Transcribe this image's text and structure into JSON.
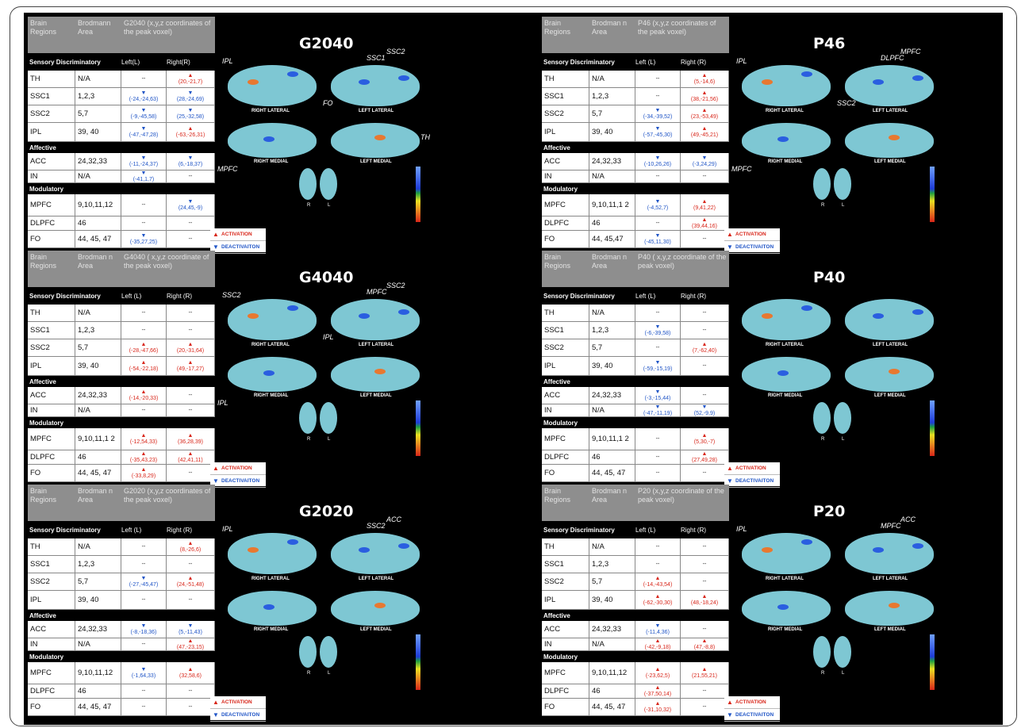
{
  "panels": [
    {
      "id": "G2040",
      "col_header": "G2040 (x,y,z coordinates of the peak voxel)",
      "left": "Left(L)",
      "right": "Right(R)",
      "rows": [
        {
          "region": "TH",
          "area": "N/A",
          "L": "--",
          "R": "(20,-21,7)",
          "Ld": "",
          "Rd": "up"
        },
        {
          "region": "SSC1",
          "area": "1,2,3",
          "L": "(-24,-24,63)",
          "R": "(28,-24,69)",
          "Ld": "dn",
          "Rd": "dn"
        },
        {
          "region": "SSC2",
          "area": "5,7",
          "L": "(-9,-45,58)",
          "R": "(25,-32,58)",
          "Ld": "dn",
          "Rd": "dn"
        },
        {
          "region": "IPL",
          "area": "39, 40",
          "L": "(-47,-47,28)",
          "R": "(-63,-26,31)",
          "Ld": "dn",
          "Rd": "up"
        },
        {
          "region": "ACC",
          "area": "24,32,33",
          "L": "(-11,-24,37)",
          "R": "(6,-18,37)",
          "Ld": "dn",
          "Rd": "dn"
        },
        {
          "region": "IN",
          "area": "N/A",
          "L": "(-41,1,7)",
          "R": "--",
          "Ld": "dn",
          "Rd": ""
        },
        {
          "region": "MPFC",
          "area": "9,10,11,12",
          "L": "--",
          "R": "(24,45,-9)",
          "Ld": "",
          "Rd": "dn"
        },
        {
          "region": "DLPFC",
          "area": "46",
          "L": "--",
          "R": "--",
          "Ld": "",
          "Rd": ""
        },
        {
          "region": "FO",
          "area": "44, 45, 47",
          "L": "(-35,27,25)",
          "R": "--",
          "Ld": "dn",
          "Rd": ""
        }
      ]
    },
    {
      "id": "G4040",
      "col_header": "G4040 ( x,y,z coordinate of the peak voxel)",
      "left": "Left (L)",
      "right": "Right (R)",
      "rows": [
        {
          "region": "TH",
          "area": "N/A",
          "L": "--",
          "R": "--",
          "Ld": "",
          "Rd": ""
        },
        {
          "region": "SSC1",
          "area": "1,2,3",
          "L": "--",
          "R": "--",
          "Ld": "",
          "Rd": ""
        },
        {
          "region": "SSC2",
          "area": "5,7",
          "L": "(-28,-47,66)",
          "R": "(20,-31,64)",
          "Ld": "up",
          "Rd": "up"
        },
        {
          "region": "IPL",
          "area": "39, 40",
          "L": "(-54,-22,18)",
          "R": "(49,-17,27)",
          "Ld": "up",
          "Rd": "up"
        },
        {
          "region": "ACC",
          "area": "24,32,33",
          "L": "(-14,-20,33)",
          "R": "--",
          "Ld": "up",
          "Rd": ""
        },
        {
          "region": "IN",
          "area": "N/A",
          "L": "--",
          "R": "--",
          "Ld": "",
          "Rd": ""
        },
        {
          "region": "MPFC",
          "area": "9,10,11,1 2",
          "L": "(-12,54,33)",
          "R": "(36,28,39)",
          "Ld": "up",
          "Rd": "up"
        },
        {
          "region": "DLPFC",
          "area": "46",
          "L": "(-35,43,23)",
          "R": "(42,41,11)",
          "Ld": "up",
          "Rd": "up"
        },
        {
          "region": "FO",
          "area": "44, 45, 47",
          "L": "(-33,8,29)",
          "R": "--",
          "Ld": "up",
          "Rd": ""
        }
      ]
    },
    {
      "id": "G2020",
      "col_header": "G2020 (x,y,z coordinates of the peak voxel)",
      "left": "Left (L)",
      "right": "Right (R)",
      "rows": [
        {
          "region": "TH",
          "area": "N/A",
          "L": "--",
          "R": "(8,-26,6)",
          "Ld": "",
          "Rd": "up"
        },
        {
          "region": "SSC1",
          "area": "1,2,3",
          "L": "--",
          "R": "--",
          "Ld": "",
          "Rd": ""
        },
        {
          "region": "SSC2",
          "area": "5,7",
          "L": "(-27,-45,47)",
          "R": "(24,-51,48)",
          "Ld": "dn",
          "Rd": "up"
        },
        {
          "region": "IPL",
          "area": "39, 40",
          "L": "--",
          "R": "--",
          "Ld": "",
          "Rd": ""
        },
        {
          "region": "ACC",
          "area": "24,32,33",
          "L": "(-8,-18,36)",
          "R": "(5,-11,43)",
          "Ld": "dn",
          "Rd": "dn"
        },
        {
          "region": "IN",
          "area": "N/A",
          "L": "--",
          "R": "(47,-23,15)",
          "Ld": "",
          "Rd": "up"
        },
        {
          "region": "MPFC",
          "area": "9,10,11,12",
          "L": "(-1,64,33)",
          "R": "(32,58,6)",
          "Ld": "dn",
          "Rd": "up"
        },
        {
          "region": "DLPFC",
          "area": "46",
          "L": "--",
          "R": "--",
          "Ld": "",
          "Rd": ""
        },
        {
          "region": "FO",
          "area": "44, 45, 47",
          "L": "--",
          "R": "--",
          "Ld": "",
          "Rd": ""
        }
      ]
    },
    {
      "id": "P46",
      "col_header": "P46 (x,y,z coordinates of the peak voxel)",
      "left": "Left (L)",
      "right": "Right (R)",
      "rows": [
        {
          "region": "TH",
          "area": "N/A",
          "L": "--",
          "R": "(5,-14,6)",
          "Ld": "",
          "Rd": "up"
        },
        {
          "region": "SSC1",
          "area": "1,2,3",
          "L": "--",
          "R": "(38,-21,56)",
          "Ld": "",
          "Rd": "up"
        },
        {
          "region": "SSC2",
          "area": "5,7",
          "L": "(-34,-39,52)",
          "R": "(23,-53,49)",
          "Ld": "dn",
          "Rd": "up"
        },
        {
          "region": "IPL",
          "area": "39, 40",
          "L": "(-57,-45,30)",
          "R": "(49,-45,21)",
          "Ld": "dn",
          "Rd": "up"
        },
        {
          "region": "ACC",
          "area": "24,32,33",
          "L": "(-10,26,26)",
          "R": "(-3,24,29)",
          "Ld": "dn",
          "Rd": "dn"
        },
        {
          "region": "IN",
          "area": "N/A",
          "L": "--",
          "R": "--",
          "Ld": "",
          "Rd": ""
        },
        {
          "region": "MPFC",
          "area": "9,10,11,1 2",
          "L": "(-4,52,7)",
          "R": "(9,41,22)",
          "Ld": "dn",
          "Rd": "up"
        },
        {
          "region": "DLPFC",
          "area": "46",
          "L": "--",
          "R": "(39,44,16)",
          "Ld": "",
          "Rd": "up"
        },
        {
          "region": "FO",
          "area": "44, 45,47",
          "L": "(-45,11,30)",
          "R": "--",
          "Ld": "dn",
          "Rd": ""
        }
      ]
    },
    {
      "id": "P40",
      "col_header": "P40 ( x,y,z coordinate of the peak voxel)",
      "left": "Left (L)",
      "right": "Right (R)",
      "rows": [
        {
          "region": "TH",
          "area": "N/A",
          "L": "--",
          "R": "--",
          "Ld": "",
          "Rd": ""
        },
        {
          "region": "SSC1",
          "area": "1,2,3",
          "L": "(-6,-39,58)",
          "R": "--",
          "Ld": "dn",
          "Rd": ""
        },
        {
          "region": "SSC2",
          "area": "5,7",
          "L": "--",
          "R": "(7,-62,40)",
          "Ld": "",
          "Rd": "up"
        },
        {
          "region": "IPL",
          "area": "39, 40",
          "L": "(-59,-15,19)",
          "R": "--",
          "Ld": "dn",
          "Rd": ""
        },
        {
          "region": "ACC",
          "area": "24,32,33",
          "L": "(-3,-15,44)",
          "R": "--",
          "Ld": "dn",
          "Rd": ""
        },
        {
          "region": "IN",
          "area": "N/A",
          "L": "(-47,-11,19)",
          "R": "(52,-9,9)",
          "Ld": "dn",
          "Rd": "dn"
        },
        {
          "region": "MPFC",
          "area": "9,10,11,1 2",
          "L": "--",
          "R": "(5,30,-7)",
          "Ld": "",
          "Rd": "up"
        },
        {
          "region": "DLPFC",
          "area": "46",
          "L": "--",
          "R": "(27,49,28)",
          "Ld": "",
          "Rd": "up"
        },
        {
          "region": "FO",
          "area": "44, 45, 47",
          "L": "--",
          "R": "--",
          "Ld": "",
          "Rd": ""
        }
      ]
    },
    {
      "id": "P20",
      "col_header": "P20 (x,y,z coordinate of the peak voxel)",
      "left": "Left (L)",
      "right": "Right (R)",
      "rows": [
        {
          "region": "TH",
          "area": "N/A",
          "L": "--",
          "R": "--",
          "Ld": "",
          "Rd": ""
        },
        {
          "region": "SSC1",
          "area": "1,2,3",
          "L": "--",
          "R": "--",
          "Ld": "",
          "Rd": ""
        },
        {
          "region": "SSC2",
          "area": "5,7",
          "L": "(-14,-43,54)",
          "R": "--",
          "Ld": "up",
          "Rd": ""
        },
        {
          "region": "IPL",
          "area": "39, 40",
          "L": "(-62,-30,30)",
          "R": "(48,-18,24)",
          "Ld": "up",
          "Rd": "up"
        },
        {
          "region": "ACC",
          "area": "24,32,33",
          "L": "(-11,4,36)",
          "R": "--",
          "Ld": "dn",
          "Rd": ""
        },
        {
          "region": "IN",
          "area": "N/A",
          "L": "(-42,-9,18)",
          "R": "(47,-8,8)",
          "Ld": "up",
          "Rd": "up"
        },
        {
          "region": "MPFC",
          "area": "9,10,11,12",
          "L": "(-23,62,5)",
          "R": "(21,55,21)",
          "Ld": "up",
          "Rd": "up"
        },
        {
          "region": "DLPFC",
          "area": "46",
          "L": "(-37,50,14)",
          "R": "--",
          "Ld": "up",
          "Rd": ""
        },
        {
          "region": "FO",
          "area": "44, 45, 47",
          "L": "(-31,10,32)",
          "R": "--",
          "Ld": "up",
          "Rd": ""
        }
      ]
    }
  ],
  "common": {
    "brain_regions": "Brain Regions",
    "brodmann": "Brodmann Area",
    "brodmann_split": "Brodman n Area",
    "sensory": "Sensory Discriminatory",
    "affective": "Affective",
    "modulatory": "Modulatory",
    "activation": "ACTIVATION",
    "deactivation": "DEACTIVAITON",
    "right_lateral": "RIGHT LATERAL",
    "left_lateral": "LEFT LATERAL",
    "right_medial": "RIGHT MEDIAL",
    "left_medial": "LEFT MEDIAL",
    "r": "R",
    "l": "L",
    "colors": {
      "activation": "#d8261a",
      "deactivation": "#1f54c6",
      "header": "#8e8e8e",
      "brain": "#7ec7d3"
    }
  },
  "annotations": {
    "G2040": [
      "IPL",
      "SSC1",
      "SSC2",
      "FO",
      "MPFC",
      "TH"
    ],
    "G4040": [
      "SSC2",
      "MPFC",
      "SSC2",
      "IPL",
      "IPL"
    ],
    "G2020": [
      "IPL",
      "SSC2",
      "ACC"
    ],
    "P46": [
      "IPL",
      "DLPFC",
      "MPFC",
      "SSC2",
      "MPFC"
    ],
    "P40": [],
    "P20": [
      "IPL",
      "MPFC",
      "ACC"
    ]
  }
}
